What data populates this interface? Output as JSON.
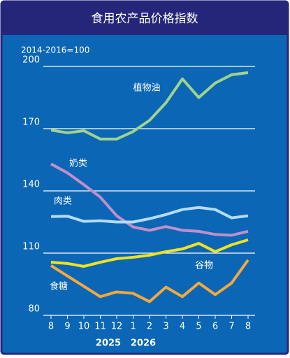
{
  "chart_data": {
    "type": "line",
    "title": "食用农产品价格指数",
    "subtitle": "2014-2016=100",
    "categories": [
      "8",
      "9",
      "10",
      "11",
      "12",
      "1",
      "2",
      "3",
      "4",
      "5",
      "6",
      "7",
      "8"
    ],
    "year_labels": [
      "2025",
      "2026"
    ],
    "ylim": [
      80,
      200
    ],
    "yticks": [
      80,
      110,
      140,
      170,
      200
    ],
    "grid": true,
    "series": [
      {
        "name": "植物油",
        "color": "#9fd38c",
        "values": [
          169.3,
          168,
          169,
          165,
          165,
          168.6,
          174,
          182.5,
          194,
          185,
          192,
          196,
          197
        ]
      },
      {
        "name": "奶类",
        "color": "#c08fcb",
        "values": [
          153,
          148.7,
          143,
          137,
          128,
          122.6,
          121,
          122.8,
          121,
          120.5,
          119,
          118.6,
          120.5
        ]
      },
      {
        "name": "肉类",
        "color": "#b3dcf2",
        "values": [
          127.6,
          127.8,
          125.3,
          125.6,
          125,
          125,
          126.6,
          128.6,
          131,
          132,
          131,
          127,
          128
        ]
      },
      {
        "name": "谷物",
        "color": "#f2e21e",
        "values": [
          105.6,
          105,
          103.6,
          105.6,
          107.3,
          108,
          109,
          110.7,
          112,
          114.7,
          110.7,
          114,
          116.4
        ]
      },
      {
        "name": "食糖",
        "color": "#f2a93e",
        "values": [
          104,
          99,
          94,
          89,
          91.3,
          90.6,
          86.6,
          93.6,
          89,
          95.6,
          90,
          95.6,
          106.7
        ]
      }
    ]
  }
}
